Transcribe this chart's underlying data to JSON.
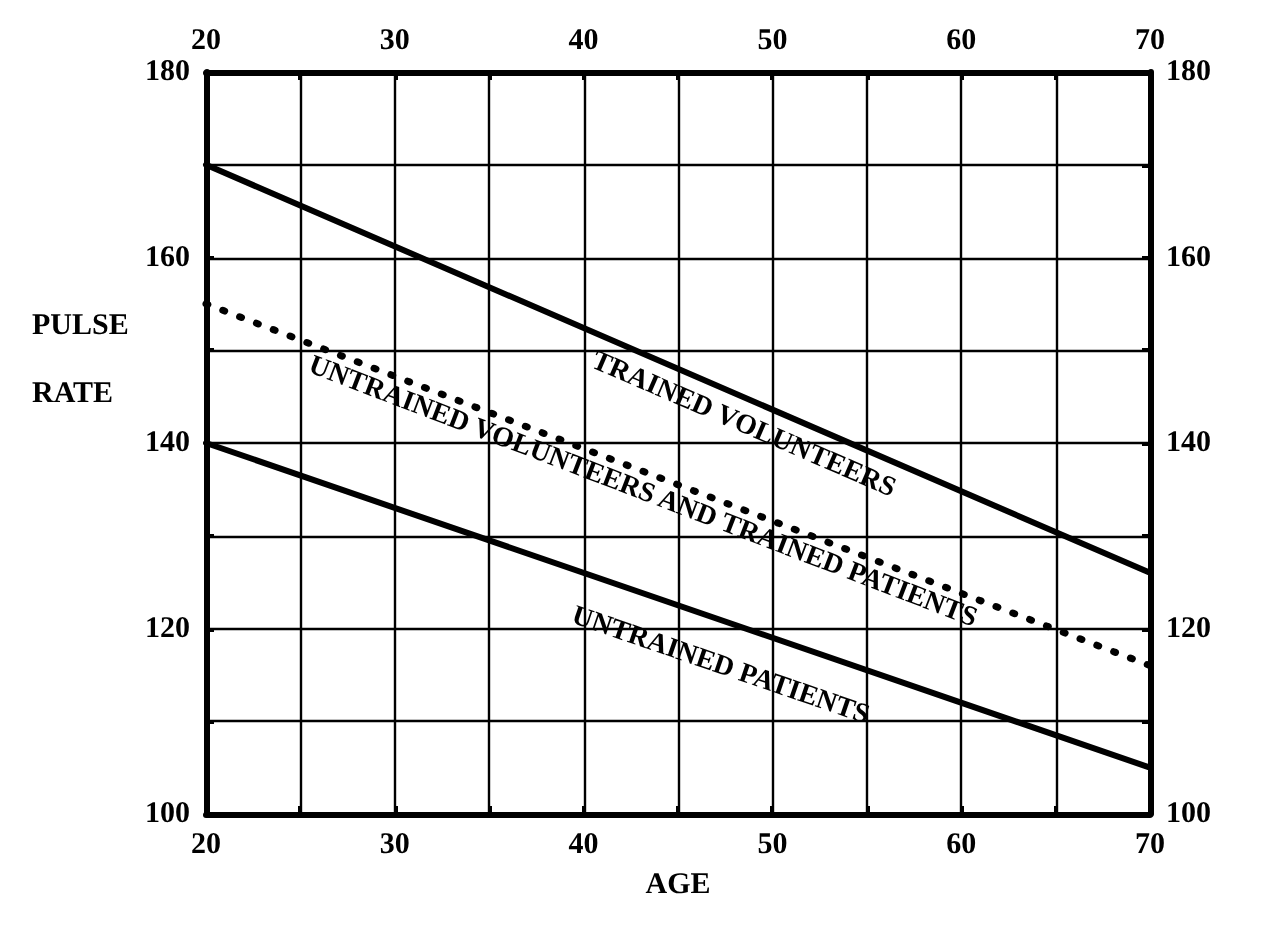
{
  "chart_data": {
    "type": "line",
    "xlabel": "AGE",
    "ylabel": "PULSE RATE",
    "x": [
      20,
      70
    ],
    "series": [
      {
        "name": "TRAINED VOLUNTEERS",
        "color": "#000000",
        "values": [
          170,
          126
        ],
        "line_style": "solid"
      },
      {
        "name": "UNTRAINED VOLUNTEERS AND TRAINED PATIENTS",
        "color": "#000000",
        "values": [
          155,
          116
        ],
        "line_style": "dotted"
      },
      {
        "name": "UNTRAINED PATIENTS",
        "color": "#000000",
        "values": [
          140,
          105
        ],
        "line_style": "solid"
      }
    ],
    "xlim": [
      20,
      70
    ],
    "xticks": [
      20,
      {
        "value": 25,
        "label": null
      },
      30,
      {
        "value": 35,
        "label": null
      },
      40,
      {
        "value": 45,
        "label": null
      },
      50,
      {
        "value": 55,
        "label": null
      },
      60,
      {
        "value": 65,
        "label": null
      },
      70
    ],
    "x2lim": [
      20,
      70
    ],
    "x2ticks": [
      20,
      {
        "value": 25,
        "label": null
      },
      30,
      {
        "value": 35,
        "label": null
      },
      40,
      {
        "value": 45,
        "label": null
      },
      50,
      {
        "value": 55,
        "label": null
      },
      60,
      {
        "value": 65,
        "label": null
      },
      70
    ],
    "ylim": [
      100,
      180
    ],
    "yticks": [
      100,
      {
        "value": 110,
        "label": null
      },
      120,
      {
        "value": 130,
        "label": null
      },
      140,
      {
        "value": 150,
        "label": null
      },
      160,
      {
        "value": 170,
        "label": null
      },
      180
    ],
    "y2lim": [
      100,
      180
    ],
    "y2ticks": [
      100,
      {
        "value": 110,
        "label": null
      },
      120,
      {
        "value": 130,
        "label": null
      },
      140,
      {
        "value": 150,
        "label": null
      },
      160,
      {
        "value": 170,
        "label": null
      },
      180
    ],
    "grid": true,
    "marker": "none",
    "legend": false
  }
}
